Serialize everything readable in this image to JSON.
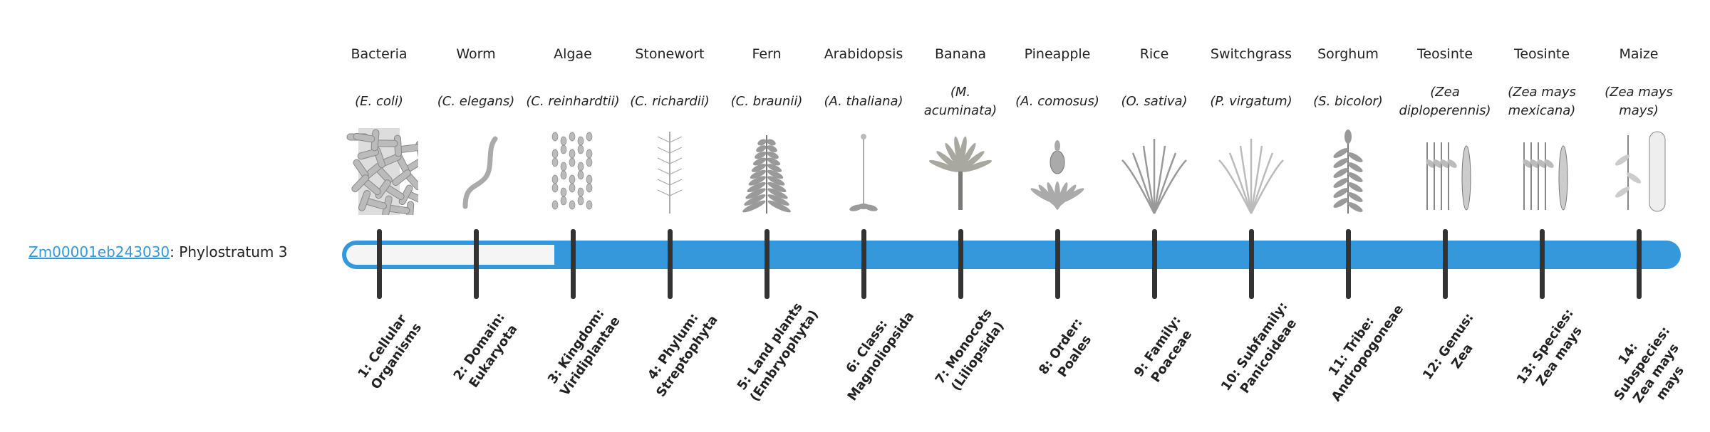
{
  "gene": {
    "id": "Zm00001eb243030",
    "suffix": ": Phylostratum 3"
  },
  "colors": {
    "bar": "#3498db",
    "bar_empty": "#f5f5f5",
    "tick": "#333333",
    "link": "#3498db"
  },
  "progress": {
    "phylostratum": 3,
    "total": 14
  },
  "organisms": [
    {
      "common": "Bacteria",
      "species": "(E. coli)",
      "icon": "bacteria"
    },
    {
      "common": "Worm",
      "species": "(C. elegans)",
      "icon": "worm"
    },
    {
      "common": "Algae",
      "species": "(C. reinhardtii)",
      "icon": "algae"
    },
    {
      "common": "Stonewort",
      "species": "(C. richardii)",
      "icon": "stonewort"
    },
    {
      "common": "Fern",
      "species": "(C. braunii)",
      "icon": "fern"
    },
    {
      "common": "Arabidopsis",
      "species": "(A. thaliana)",
      "icon": "arabidopsis"
    },
    {
      "common": "Banana",
      "species": "(M. acuminata)",
      "icon": "banana"
    },
    {
      "common": "Pineapple",
      "species": "(A. comosus)",
      "icon": "pineapple"
    },
    {
      "common": "Rice",
      "species": "(O. sativa)",
      "icon": "rice"
    },
    {
      "common": "Switchgrass",
      "species": "(P. virgatum)",
      "icon": "switchgrass"
    },
    {
      "common": "Sorghum",
      "species": "(S. bicolor)",
      "icon": "sorghum"
    },
    {
      "common": "Teosinte",
      "species": "(Zea diploperennis)",
      "icon": "teosinte"
    },
    {
      "common": "Teosinte",
      "species": "(Zea mays mexicana)",
      "icon": "teosinte"
    },
    {
      "common": "Maize",
      "species": "(Zea mays mays)",
      "icon": "maize"
    }
  ],
  "levels": [
    "1: Cellular Organisms",
    "2: Domain: Eukaryota",
    "3: Kingdom: Viridiplantae",
    "4: Phylum: Streptophyta",
    "5: Land plants (Embryophyta)",
    "6: Class: Magnoliopsida",
    "7: Monocots (Liliopsida)",
    "8: Order: Poales",
    "9: Family: Poaceae",
    "10: Subfamily: Panicoideae",
    "11: Tribe: Andropogoneae",
    "12: Genus: Zea",
    "13: Species: Zea mays",
    "14: Subspecies: Zea mays mays"
  ]
}
